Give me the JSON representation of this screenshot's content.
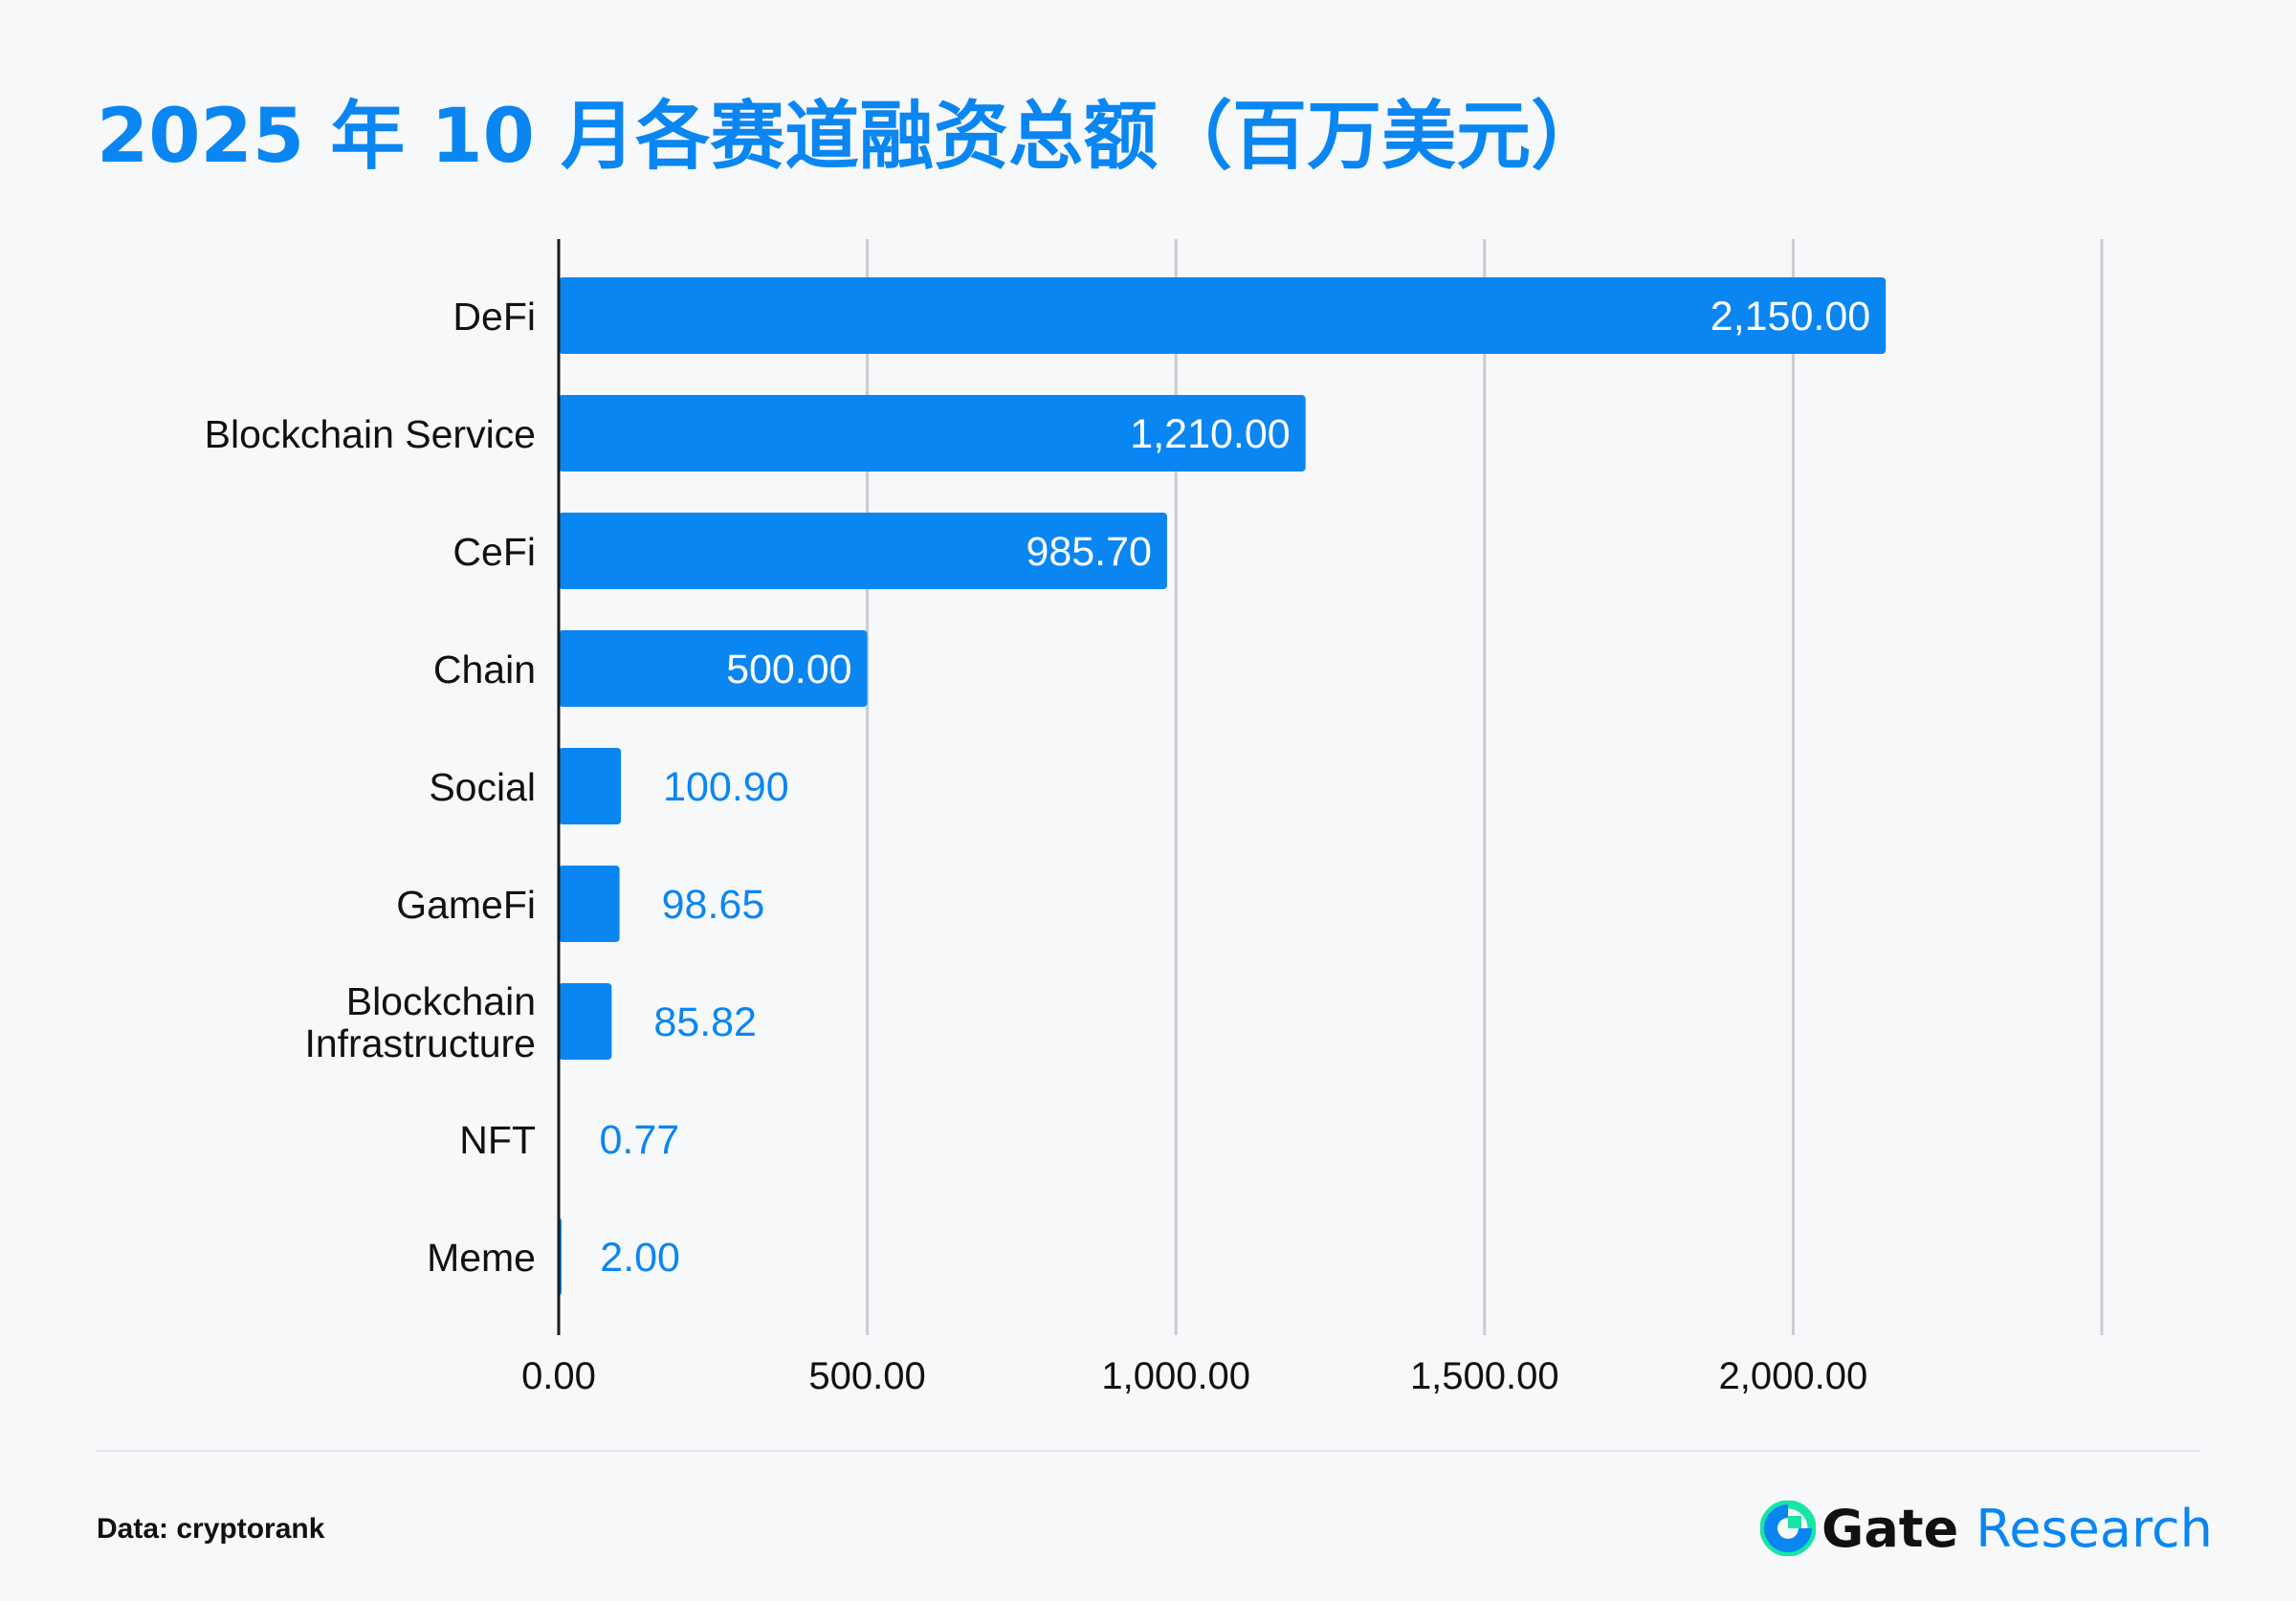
{
  "title": "2025 年 10 月各赛道融资总额（百万美元）",
  "source": "Data: cryptorank",
  "brand": {
    "gate": "Gate",
    "research": "Research",
    "accent": "#0a86f2"
  },
  "chart_data": {
    "type": "bar",
    "orientation": "horizontal",
    "categories": [
      "DeFi",
      "Blockchain Service",
      "CeFi",
      "Chain",
      "Social",
      "GameFi",
      "Blockchain Infrastructure",
      "NFT",
      "Meme"
    ],
    "values": [
      2150.0,
      1210.0,
      985.7,
      500.0,
      100.9,
      98.65,
      85.82,
      0.77,
      2.0
    ],
    "value_labels": [
      "2,150.00",
      "1,210.00",
      "985.70",
      "500.00",
      "100.90",
      "98.65",
      "85.82",
      "0.77",
      "2.00"
    ],
    "xlim": [
      0,
      2500
    ],
    "xticks": [
      0,
      500,
      1000,
      1500,
      2000
    ],
    "xtick_labels": [
      "0.00",
      "500.00",
      "1,000.00",
      "1,500.00",
      "2,000.00"
    ],
    "grid": true,
    "bar_color": "#0a86f2",
    "title": "2025 年 10 月各赛道融资总额（百万美元）",
    "xlabel": "",
    "ylabel": ""
  }
}
